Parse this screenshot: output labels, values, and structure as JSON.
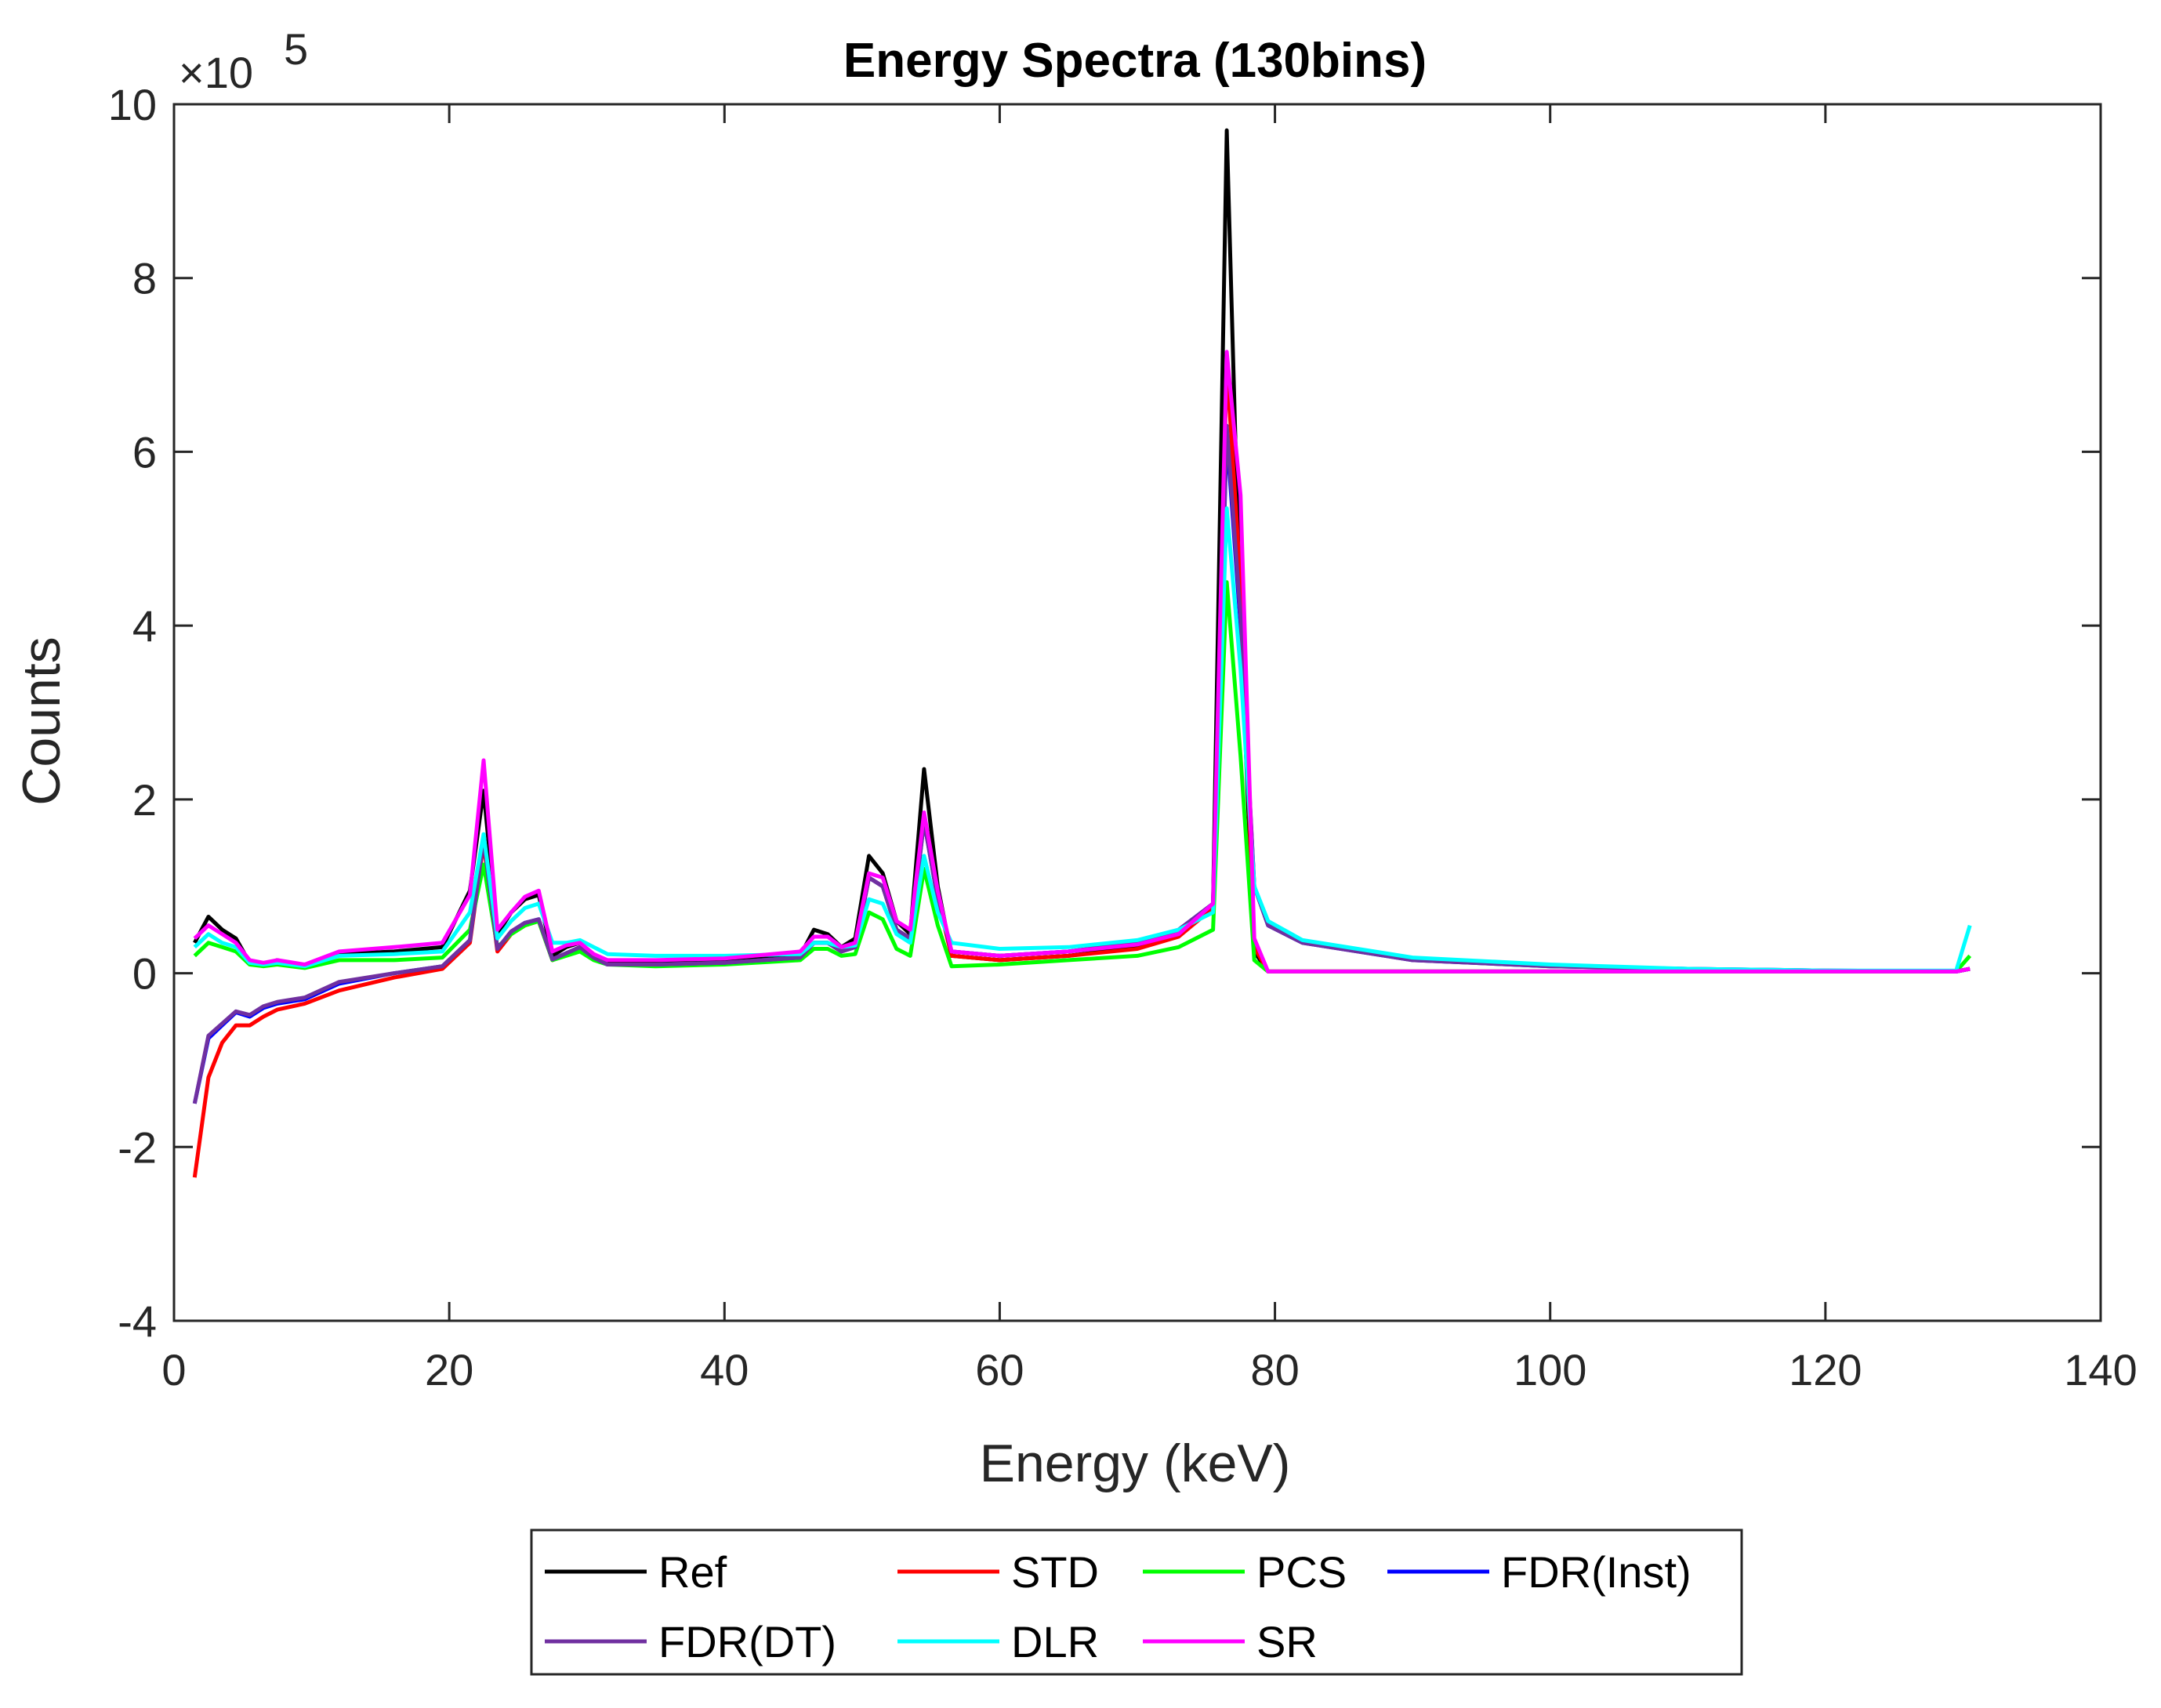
{
  "chart_data": {
    "type": "line",
    "title": "Energy Spectra (130bins)",
    "xlabel": "Energy (keV)",
    "ylabel": "Counts",
    "xlim": [
      0,
      140
    ],
    "ylim": [
      -4,
      10
    ],
    "xticks": [
      0,
      20,
      40,
      60,
      80,
      100,
      120,
      140
    ],
    "yticks": [
      -4,
      -2,
      0,
      2,
      4,
      6,
      8,
      10
    ],
    "xtick_labels": [
      "0",
      "20",
      "40",
      "60",
      "80",
      "100",
      "120",
      "140"
    ],
    "ytick_labels": [
      "-4",
      "-2",
      "0",
      "2",
      "4",
      "6",
      "8",
      "10"
    ],
    "y_multiplier_base": "×10",
    "y_multiplier_exp": "5",
    "grid": false,
    "legend_position": "bottom-outside",
    "series": [
      {
        "name": "Ref",
        "color": "#000000",
        "x": [
          1.5,
          2.5,
          3.5,
          4.5,
          5.5,
          6.5,
          7.5,
          9.5,
          12,
          16,
          19.5,
          21.5,
          22.5,
          23.5,
          24.5,
          25.5,
          26.5,
          27.5,
          28.5,
          29.5,
          30.5,
          31.5,
          35,
          40,
          45.5,
          46.5,
          47.5,
          48.5,
          49.5,
          50.5,
          51.5,
          52.5,
          53.5,
          54.5,
          55.5,
          56.5,
          60,
          65,
          70,
          73,
          75.5,
          76.5,
          77.5,
          78.5,
          79.5,
          82,
          90,
          100,
          110,
          120,
          129.5,
          130.5
        ],
        "y": [
          0.35,
          0.65,
          0.5,
          0.4,
          0.12,
          0.1,
          0.15,
          0.08,
          0.22,
          0.25,
          0.3,
          0.95,
          2.1,
          0.45,
          0.7,
          0.85,
          0.9,
          0.2,
          0.3,
          0.35,
          0.2,
          0.12,
          0.12,
          0.15,
          0.2,
          0.5,
          0.45,
          0.3,
          0.4,
          1.35,
          1.15,
          0.6,
          0.45,
          2.35,
          1.0,
          0.2,
          0.15,
          0.2,
          0.3,
          0.45,
          0.8,
          9.7,
          4.0,
          0.25,
          0.02,
          0.02,
          0.02,
          0.02,
          0.02,
          0.02,
          0.02,
          0.05
        ]
      },
      {
        "name": "STD",
        "color": "#ff0000",
        "x": [
          1.5,
          2.5,
          3.5,
          4.5,
          5.5,
          6.5,
          7.5,
          9.5,
          12,
          16,
          19.5,
          21.5,
          22.5,
          23.5,
          24.5,
          25.5,
          26.5,
          27.5,
          28.5,
          29.5,
          30.5,
          31.5,
          35,
          40,
          45.5,
          46.5,
          47.5,
          48.5,
          49.5,
          50.5,
          51.5,
          52.5,
          53.5,
          54.5,
          55.5,
          56.5,
          60,
          65,
          70,
          73,
          75.5,
          76.5,
          77.5,
          78.5,
          79.5,
          82,
          90,
          100,
          110,
          120,
          129.5,
          130.5
        ],
        "y": [
          -2.35,
          -1.2,
          -0.8,
          -0.6,
          -0.6,
          -0.5,
          -0.42,
          -0.35,
          -0.2,
          -0.05,
          0.05,
          0.35,
          1.5,
          0.25,
          0.45,
          0.55,
          0.6,
          0.15,
          0.22,
          0.3,
          0.18,
          0.1,
          0.1,
          0.12,
          0.18,
          0.35,
          0.35,
          0.25,
          0.3,
          1.1,
          1.0,
          0.5,
          0.4,
          1.8,
          0.85,
          0.2,
          0.15,
          0.2,
          0.28,
          0.42,
          0.75,
          7.0,
          4.5,
          0.3,
          0.02,
          0.02,
          0.02,
          0.02,
          0.02,
          0.02,
          0.02,
          0.05
        ]
      },
      {
        "name": "PCS",
        "color": "#00ff00",
        "x": [
          1.5,
          2.5,
          3.5,
          4.5,
          5.5,
          6.5,
          7.5,
          9.5,
          12,
          16,
          19.5,
          21.5,
          22.5,
          23.5,
          24.5,
          25.5,
          26.5,
          27.5,
          28.5,
          29.5,
          30.5,
          31.5,
          35,
          40,
          45.5,
          46.5,
          47.5,
          48.5,
          49.5,
          50.5,
          51.5,
          52.5,
          53.5,
          54.5,
          55.5,
          56.5,
          60,
          65,
          70,
          73,
          75.5,
          76.5,
          77.5,
          78.5,
          79.5,
          82,
          90,
          100,
          110,
          120,
          129.5,
          130.5
        ],
        "y": [
          0.2,
          0.35,
          0.3,
          0.25,
          0.1,
          0.08,
          0.1,
          0.06,
          0.15,
          0.15,
          0.18,
          0.5,
          1.25,
          0.3,
          0.45,
          0.55,
          0.6,
          0.15,
          0.2,
          0.25,
          0.15,
          0.1,
          0.08,
          0.1,
          0.15,
          0.28,
          0.28,
          0.2,
          0.22,
          0.7,
          0.62,
          0.28,
          0.2,
          1.2,
          0.55,
          0.08,
          0.1,
          0.15,
          0.2,
          0.3,
          0.5,
          4.5,
          2.5,
          0.15,
          0.02,
          0.02,
          0.02,
          0.02,
          0.02,
          0.02,
          0.02,
          0.2
        ]
      },
      {
        "name": "FDR(Inst)",
        "color": "#0000ff",
        "x": [
          1.5,
          2.5,
          3.5,
          4.5,
          5.5,
          6.5,
          7.5,
          9.5,
          12,
          16,
          19.5,
          21.5,
          22.5,
          23.5,
          24.5,
          25.5,
          26.5,
          27.5,
          28.5,
          29.5,
          30.5,
          31.5,
          35,
          40,
          45.5,
          46.5,
          47.5,
          48.5,
          49.5,
          50.5,
          51.5,
          52.5,
          53.5,
          54.5,
          55.5,
          56.5,
          60,
          65,
          70,
          73,
          75.5,
          76.5,
          77.5,
          78.5,
          79.5,
          82,
          90,
          100,
          110,
          120,
          129.5,
          130.5
        ],
        "y": [
          -1.5,
          -0.75,
          -0.6,
          -0.45,
          -0.5,
          -0.4,
          -0.35,
          -0.3,
          -0.12,
          0.0,
          0.08,
          0.38,
          1.55,
          0.28,
          0.48,
          0.58,
          0.62,
          0.16,
          0.23,
          0.3,
          0.18,
          0.1,
          0.1,
          0.12,
          0.18,
          0.35,
          0.35,
          0.25,
          0.3,
          1.1,
          1.0,
          0.5,
          0.4,
          1.75,
          0.85,
          0.25,
          0.2,
          0.25,
          0.35,
          0.5,
          0.8,
          6.2,
          4.0,
          1.0,
          0.55,
          0.35,
          0.15,
          0.08,
          0.05,
          0.03,
          0.02,
          0.05
        ]
      },
      {
        "name": "FDR(DT)",
        "color": "#7030a0",
        "x": [
          1.5,
          2.5,
          3.5,
          4.5,
          5.5,
          6.5,
          7.5,
          9.5,
          12,
          16,
          19.5,
          21.5,
          22.5,
          23.5,
          24.5,
          25.5,
          26.5,
          27.5,
          28.5,
          29.5,
          30.5,
          31.5,
          35,
          40,
          45.5,
          46.5,
          47.5,
          48.5,
          49.5,
          50.5,
          51.5,
          52.5,
          53.5,
          54.5,
          55.5,
          56.5,
          60,
          65,
          70,
          73,
          75.5,
          76.5,
          77.5,
          78.5,
          79.5,
          82,
          90,
          100,
          110,
          120,
          129.5,
          130.5
        ],
        "y": [
          -1.5,
          -0.72,
          -0.58,
          -0.44,
          -0.48,
          -0.38,
          -0.33,
          -0.28,
          -0.1,
          0.0,
          0.08,
          0.38,
          1.55,
          0.28,
          0.48,
          0.58,
          0.62,
          0.16,
          0.23,
          0.3,
          0.18,
          0.1,
          0.1,
          0.12,
          0.18,
          0.35,
          0.35,
          0.25,
          0.3,
          1.1,
          1.0,
          0.5,
          0.4,
          1.75,
          0.85,
          0.25,
          0.2,
          0.25,
          0.35,
          0.5,
          0.8,
          6.3,
          4.1,
          1.0,
          0.55,
          0.35,
          0.15,
          0.08,
          0.05,
          0.03,
          0.02,
          0.05
        ]
      },
      {
        "name": "DLR",
        "color": "#00ffff",
        "x": [
          1.5,
          2.5,
          3.5,
          4.5,
          5.5,
          6.5,
          7.5,
          9.5,
          12,
          16,
          19.5,
          21.5,
          22.5,
          23.5,
          24.5,
          25.5,
          26.5,
          27.5,
          28.5,
          29.5,
          30.5,
          31.5,
          35,
          40,
          45.5,
          46.5,
          47.5,
          48.5,
          49.5,
          50.5,
          51.5,
          52.5,
          53.5,
          54.5,
          55.5,
          56.5,
          60,
          65,
          70,
          73,
          75.5,
          76.5,
          77.5,
          78.5,
          79.5,
          82,
          90,
          100,
          110,
          120,
          129.5,
          130.5
        ],
        "y": [
          0.3,
          0.45,
          0.35,
          0.3,
          0.12,
          0.1,
          0.12,
          0.08,
          0.2,
          0.22,
          0.25,
          0.7,
          1.6,
          0.4,
          0.6,
          0.75,
          0.8,
          0.35,
          0.35,
          0.38,
          0.3,
          0.22,
          0.2,
          0.2,
          0.22,
          0.35,
          0.35,
          0.3,
          0.32,
          0.85,
          0.8,
          0.45,
          0.35,
          1.35,
          0.7,
          0.35,
          0.28,
          0.3,
          0.38,
          0.5,
          0.7,
          5.35,
          3.5,
          1.0,
          0.6,
          0.38,
          0.18,
          0.1,
          0.05,
          0.03,
          0.03,
          0.55
        ]
      },
      {
        "name": "SR",
        "color": "#ff00ff",
        "x": [
          1.5,
          2.5,
          3.5,
          4.5,
          5.5,
          6.5,
          7.5,
          9.5,
          12,
          16,
          19.5,
          21.5,
          22.5,
          23.5,
          24.5,
          25.5,
          26.5,
          27.5,
          28.5,
          29.5,
          30.5,
          31.5,
          35,
          40,
          45.5,
          46.5,
          47.5,
          48.5,
          49.5,
          50.5,
          51.5,
          52.5,
          53.5,
          54.5,
          55.5,
          56.5,
          60,
          65,
          70,
          73,
          75.5,
          76.5,
          77.5,
          78.5,
          79.5,
          82,
          90,
          100,
          110,
          120,
          129.5,
          130.5
        ],
        "y": [
          0.4,
          0.55,
          0.45,
          0.35,
          0.15,
          0.12,
          0.15,
          0.1,
          0.25,
          0.3,
          0.35,
          0.9,
          2.45,
          0.5,
          0.7,
          0.88,
          0.95,
          0.25,
          0.32,
          0.35,
          0.22,
          0.15,
          0.15,
          0.17,
          0.25,
          0.42,
          0.42,
          0.3,
          0.35,
          1.15,
          1.1,
          0.6,
          0.5,
          1.85,
          0.95,
          0.25,
          0.2,
          0.25,
          0.33,
          0.45,
          0.8,
          7.15,
          5.5,
          0.4,
          0.02,
          0.02,
          0.02,
          0.02,
          0.02,
          0.02,
          0.02,
          0.05
        ]
      }
    ]
  }
}
